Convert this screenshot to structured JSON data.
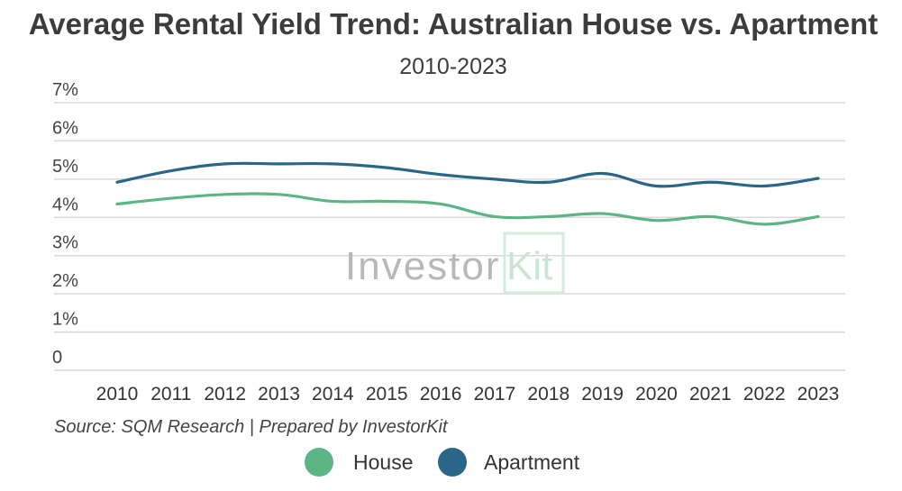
{
  "chart_data": {
    "type": "line",
    "title": "Average Rental Yield Trend: Australian House vs. Apartment",
    "subtitle": "2010-2023",
    "xlabel": "",
    "ylabel": "",
    "x": [
      "2010",
      "2011",
      "2012",
      "2013",
      "2014",
      "2015",
      "2016",
      "2017",
      "2018",
      "2019",
      "2020",
      "2021",
      "2022",
      "2023"
    ],
    "y_ticks": [
      "0",
      "1%",
      "2%",
      "3%",
      "4%",
      "5%",
      "6%",
      "7%"
    ],
    "ylim": [
      0,
      7
    ],
    "grid": true,
    "series": [
      {
        "name": "House",
        "color": "#5cb585",
        "values": [
          4.35,
          4.5,
          4.6,
          4.6,
          4.42,
          4.42,
          4.35,
          4.02,
          4.02,
          4.1,
          3.92,
          4.02,
          3.82,
          4.02
        ]
      },
      {
        "name": "Apartment",
        "color": "#2a6688",
        "values": [
          4.92,
          5.22,
          5.4,
          5.4,
          5.4,
          5.3,
          5.12,
          5.0,
          4.92,
          5.15,
          4.82,
          4.92,
          4.82,
          5.02
        ]
      }
    ],
    "source": "Source: SQM Research | Prepared by InvestorKit",
    "legend_position": "bottom",
    "watermark": {
      "text": "Investor",
      "accent": "Kit"
    }
  }
}
